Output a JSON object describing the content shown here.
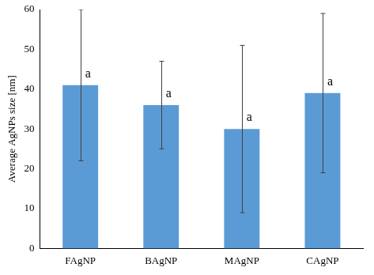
{
  "chart_data": {
    "type": "bar",
    "y_label": "Average AgNPs size [nm]",
    "categories": [
      "FAgNP",
      "BAgNP",
      "MAgNP",
      "CAgNP"
    ],
    "values": [
      41,
      36,
      30,
      39
    ],
    "error": [
      19,
      11,
      21,
      20
    ],
    "annotations": [
      "a",
      "a",
      "a",
      "a"
    ],
    "color": "#5b9bd5",
    "ylim": [
      0,
      60
    ],
    "yticks": [
      0,
      10,
      20,
      30,
      40,
      50,
      60
    ],
    "grid": false
  }
}
